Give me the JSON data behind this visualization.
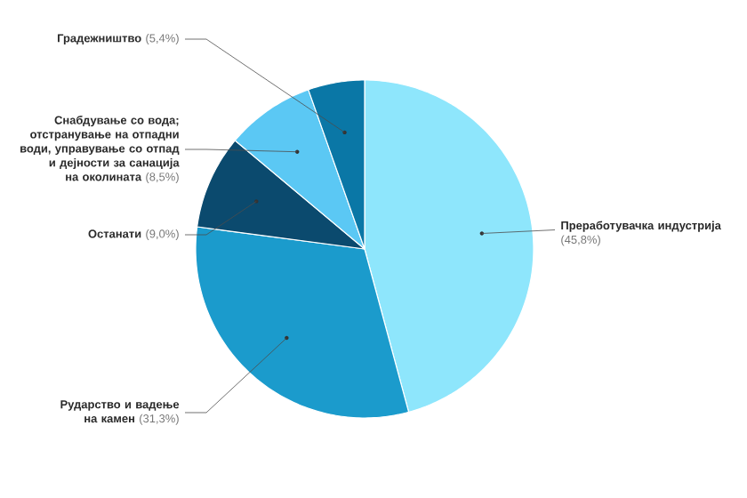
{
  "chart_data": {
    "type": "pie",
    "categories": [
      "Преработувачка индустрија",
      "Рударство и вадење на камен",
      "Останати",
      "Снабдување со вода; отстранување на отпадни води, управување со отпад и дејности за санација на околината",
      "Градежништво"
    ],
    "values": [
      45.8,
      31.3,
      9.0,
      8.5,
      5.4
    ],
    "colors": [
      "#8ee6fc",
      "#1b9bcc",
      "#0b4a6e",
      "#5bc8f4",
      "#0a77a6"
    ],
    "value_labels": [
      "(45,8%)",
      "(31,3%)",
      "(9,0%)",
      "(8,5%)",
      "(5,4%)"
    ]
  }
}
